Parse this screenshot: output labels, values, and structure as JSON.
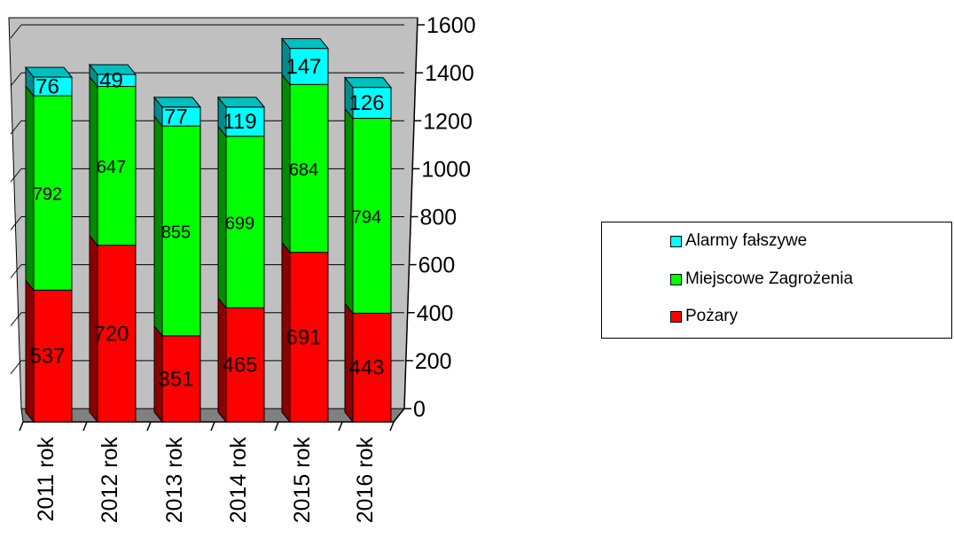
{
  "chart_data": {
    "type": "bar",
    "stacked": true,
    "three_d": true,
    "categories": [
      "2011 rok",
      "2012 rok",
      "2013 rok",
      "2014 rok",
      "2015 rok",
      "2016 rok"
    ],
    "series": [
      {
        "name": "Pożary",
        "values": [
          537,
          720,
          351,
          465,
          691,
          443
        ],
        "color": "#ff0000"
      },
      {
        "name": "Miejscowe Zagrożenia",
        "values": [
          792,
          647,
          855,
          699,
          684,
          794
        ],
        "color": "#00ff00"
      },
      {
        "name": "Alarmy fałszywe",
        "values": [
          76,
          49,
          77,
          119,
          147,
          126
        ],
        "color": "#00ffff"
      }
    ],
    "ylim": [
      0,
      1600
    ],
    "yticks": [
      "0",
      "200",
      "400",
      "600",
      "800",
      "1000",
      "1200",
      "1400",
      "1600"
    ],
    "grid": true,
    "legend_position": "right",
    "legend": [
      "Alarmy fałszywe",
      "Miejscowe Zagrożenia",
      "Pożary"
    ],
    "wall_color": "#c0c0c0",
    "floor_color": "#808080"
  }
}
